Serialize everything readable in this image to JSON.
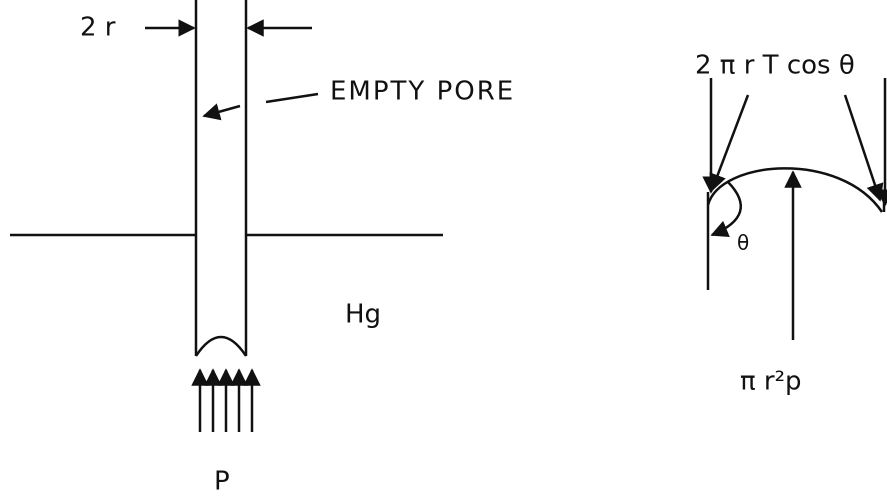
{
  "left": {
    "radius_label": "2 r",
    "pore_label": "EMPTY PORE",
    "liquid_label": "Hg",
    "pressure_label": "P"
  },
  "right": {
    "force_label": "2 π r T cos θ",
    "angle_label": "θ",
    "pressure_force_label": "π r²p"
  }
}
